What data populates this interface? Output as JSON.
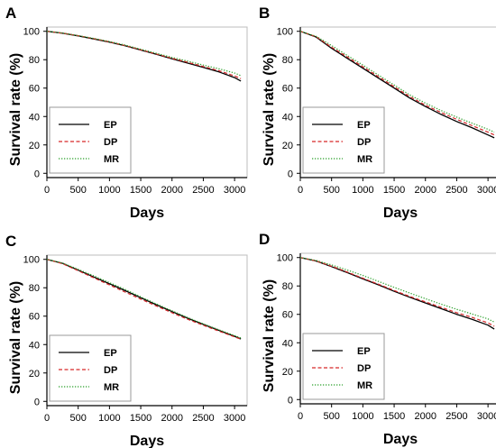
{
  "chart_data": [
    {
      "type": "line",
      "panel": "A",
      "xlabel": "Days",
      "ylabel": "Survival rate (%)",
      "xlim": [
        0,
        3200
      ],
      "ylim": [
        -3,
        103
      ],
      "xticks": [
        0,
        500,
        1000,
        1500,
        2000,
        2500,
        3000
      ],
      "yticks": [
        0,
        20,
        40,
        60,
        80,
        100
      ],
      "grid": false,
      "legend": "bottom-left",
      "series": [
        {
          "name": "EP",
          "color": "#000000",
          "style": "solid",
          "x": [
            0,
            250,
            500,
            750,
            1000,
            1250,
            1500,
            1750,
            2000,
            2250,
            2500,
            2750,
            3000,
            3100
          ],
          "y": [
            100,
            98.6,
            96.8,
            94.6,
            92.4,
            89.8,
            86.8,
            83.8,
            80.6,
            77.6,
            74.6,
            71.4,
            67.4,
            65.0
          ]
        },
        {
          "name": "DP",
          "color": "#d62728",
          "style": "dashed",
          "x": [
            0,
            250,
            500,
            750,
            1000,
            1250,
            1500,
            1750,
            2000,
            2250,
            2500,
            2750,
            3000,
            3100
          ],
          "y": [
            100,
            98.7,
            96.9,
            94.8,
            92.6,
            90.0,
            87.0,
            84.0,
            81.0,
            78.2,
            75.2,
            72.2,
            68.6,
            66.6
          ]
        },
        {
          "name": "MR",
          "color": "#2ca02c",
          "style": "dotted",
          "x": [
            0,
            250,
            500,
            750,
            1000,
            1250,
            1500,
            1750,
            2000,
            2250,
            2500,
            2750,
            3000,
            3100
          ],
          "y": [
            100,
            98.8,
            97.0,
            95.0,
            92.8,
            90.3,
            87.4,
            84.5,
            81.6,
            79.0,
            76.2,
            73.6,
            70.6,
            68.8
          ]
        }
      ]
    },
    {
      "type": "line",
      "panel": "B",
      "xlabel": "Days",
      "ylabel": "Survival rate (%)",
      "xlim": [
        0,
        3200
      ],
      "ylim": [
        -3,
        103
      ],
      "xticks": [
        0,
        500,
        1000,
        1500,
        2000,
        2500,
        3000
      ],
      "yticks": [
        0,
        20,
        40,
        60,
        80,
        100
      ],
      "grid": false,
      "legend": "bottom-left",
      "series": [
        {
          "name": "EP",
          "color": "#000000",
          "style": "solid",
          "x": [
            0,
            250,
            500,
            750,
            1000,
            1250,
            1500,
            1750,
            2000,
            2250,
            2500,
            2750,
            3000,
            3100
          ],
          "y": [
            100,
            96.0,
            88.0,
            81.0,
            74.0,
            67.0,
            60.0,
            53.0,
            47.0,
            41.5,
            36.5,
            32.0,
            27.0,
            25.0
          ]
        },
        {
          "name": "DP",
          "color": "#d62728",
          "style": "dashed",
          "x": [
            0,
            250,
            500,
            750,
            1000,
            1250,
            1500,
            1750,
            2000,
            2250,
            2500,
            2750,
            3000,
            3100
          ],
          "y": [
            100,
            96.3,
            88.8,
            82.0,
            75.0,
            68.0,
            61.0,
            54.0,
            48.0,
            42.8,
            38.0,
            33.5,
            29.0,
            27.0
          ]
        },
        {
          "name": "MR",
          "color": "#2ca02c",
          "style": "dotted",
          "x": [
            0,
            250,
            500,
            750,
            1000,
            1250,
            1500,
            1750,
            2000,
            2250,
            2500,
            2750,
            3000,
            3100
          ],
          "y": [
            100,
            96.6,
            90.0,
            83.0,
            76.2,
            69.2,
            62.2,
            55.2,
            49.4,
            44.2,
            39.6,
            35.2,
            31.0,
            29.0
          ]
        }
      ]
    },
    {
      "type": "line",
      "panel": "C",
      "xlabel": "Days",
      "ylabel": "Survival rate (%)",
      "xlim": [
        0,
        3200
      ],
      "ylim": [
        -3,
        103
      ],
      "xticks": [
        0,
        500,
        1000,
        1500,
        2000,
        2500,
        3000
      ],
      "yticks": [
        0,
        20,
        40,
        60,
        80,
        100
      ],
      "grid": false,
      "legend": "bottom-left",
      "series": [
        {
          "name": "EP",
          "color": "#000000",
          "style": "solid",
          "x": [
            0,
            250,
            500,
            750,
            1000,
            1250,
            1500,
            1750,
            2000,
            2250,
            2500,
            2750,
            3000,
            3100
          ],
          "y": [
            100,
            97.2,
            92.4,
            87.6,
            82.8,
            78.0,
            73.0,
            68.0,
            63.2,
            58.6,
            54.2,
            50.0,
            45.8,
            44.0
          ]
        },
        {
          "name": "DP",
          "color": "#d62728",
          "style": "dashed",
          "x": [
            0,
            250,
            500,
            750,
            1000,
            1250,
            1500,
            1750,
            2000,
            2250,
            2500,
            2750,
            3000,
            3100
          ],
          "y": [
            100,
            97.0,
            92.0,
            87.0,
            82.0,
            77.0,
            72.0,
            67.2,
            62.4,
            57.8,
            53.6,
            49.4,
            45.4,
            43.8
          ]
        },
        {
          "name": "MR",
          "color": "#2ca02c",
          "style": "dotted",
          "x": [
            0,
            250,
            500,
            750,
            1000,
            1250,
            1500,
            1750,
            2000,
            2250,
            2500,
            2750,
            3000,
            3100
          ],
          "y": [
            100,
            97.4,
            93.0,
            88.4,
            83.6,
            78.8,
            73.6,
            68.6,
            63.8,
            59.0,
            54.6,
            50.4,
            46.4,
            44.6
          ]
        }
      ]
    },
    {
      "type": "line",
      "panel": "D",
      "xlabel": "Days",
      "ylabel": "Survival rate (%)",
      "xlim": [
        0,
        3200
      ],
      "ylim": [
        -3,
        103
      ],
      "xticks": [
        0,
        500,
        1000,
        1500,
        2000,
        2500,
        3000
      ],
      "yticks": [
        0,
        20,
        40,
        60,
        80,
        100
      ],
      "grid": false,
      "legend": "bottom-left",
      "series": [
        {
          "name": "EP",
          "color": "#000000",
          "style": "solid",
          "x": [
            0,
            250,
            500,
            750,
            1000,
            1250,
            1500,
            1750,
            2000,
            2250,
            2500,
            2750,
            3000,
            3100
          ],
          "y": [
            100,
            97.6,
            93.6,
            89.4,
            85.0,
            80.8,
            76.2,
            72.0,
            68.0,
            64.0,
            60.0,
            56.4,
            52.4,
            49.6
          ]
        },
        {
          "name": "DP",
          "color": "#d62728",
          "style": "dashed",
          "x": [
            0,
            250,
            500,
            750,
            1000,
            1250,
            1500,
            1750,
            2000,
            2250,
            2500,
            2750,
            3000,
            3100
          ],
          "y": [
            100,
            97.7,
            93.9,
            89.8,
            85.4,
            81.2,
            76.8,
            72.6,
            68.8,
            65.0,
            61.2,
            57.8,
            54.0,
            51.6
          ]
        },
        {
          "name": "MR",
          "color": "#2ca02c",
          "style": "dotted",
          "x": [
            0,
            250,
            500,
            750,
            1000,
            1250,
            1500,
            1750,
            2000,
            2250,
            2500,
            2750,
            3000,
            3100
          ],
          "y": [
            100,
            98.0,
            94.8,
            91.2,
            87.4,
            83.2,
            79.0,
            75.0,
            71.0,
            67.2,
            63.6,
            60.2,
            56.8,
            54.6
          ]
        }
      ]
    }
  ]
}
